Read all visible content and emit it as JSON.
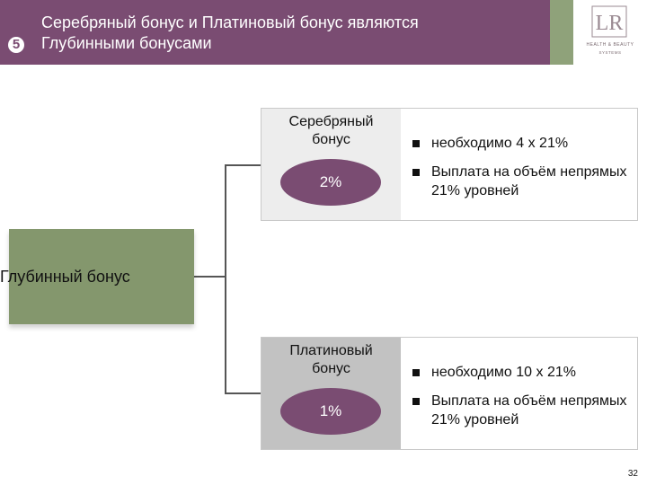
{
  "header": {
    "step_number": "5",
    "title_line1": "Серебряный бонус и Платиновый бонус являются",
    "title_line2": "Глубинными бонусами",
    "colors": {
      "header_bg": "#7a4c72",
      "accent_green": "#8fa27a"
    }
  },
  "logo": {
    "mark": "LR",
    "line1": "HEALTH & BEAUTY",
    "line2": "SYSTEMS"
  },
  "depth_bonus": {
    "label": "Глубинный бонус",
    "color": "#84976d"
  },
  "silver_panel": {
    "label_line1": "Серебряный",
    "label_line2": "бонус",
    "percent": "2%",
    "bullets": [
      "необходимо 4 х 21%",
      "Выплата на объём непрямых 21% уровней"
    ]
  },
  "platinum_panel": {
    "label_line1": "Платиновый",
    "label_line2": "бонус",
    "percent": "1%",
    "bullets": [
      "необходимо 10 х 21%",
      "Выплата на объём непрямых 21% уровней"
    ]
  },
  "footer": {
    "page_number": "32"
  }
}
